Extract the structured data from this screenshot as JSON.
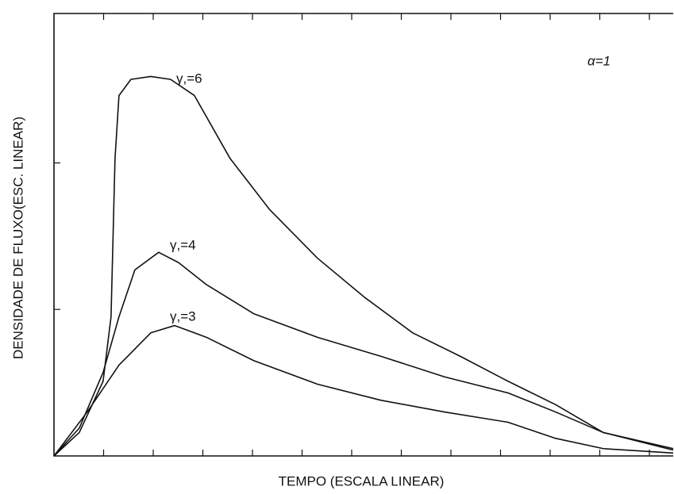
{
  "chart_data": {
    "type": "line",
    "xlabel": "TEMPO (ESCALA LINEAR)",
    "ylabel": "DENSIDADE DE FLUXO(ESC. LINEAR)",
    "annotations": [
      "α=1"
    ],
    "xlim": [
      0,
      12.48
    ],
    "ylim": [
      0,
      3.02
    ],
    "xticks": [
      1,
      2,
      3,
      4,
      5,
      6,
      7,
      8,
      9,
      10,
      11,
      12
    ],
    "yticks": [
      1,
      2
    ],
    "grid": false,
    "series": [
      {
        "name": "γ,=6",
        "color": "#111111",
        "x": [
          0,
          0.51,
          0.99,
          1.15,
          1.23,
          1.31,
          1.55,
          1.95,
          2.35,
          2.83,
          3.55,
          4.35,
          5.31,
          6.27,
          7.23,
          8.19,
          9.15,
          10.11,
          11.07,
          12.48
        ],
        "values": [
          0,
          0.16,
          0.51,
          0.95,
          2.03,
          2.46,
          2.57,
          2.59,
          2.57,
          2.46,
          2.03,
          1.68,
          1.35,
          1.08,
          0.84,
          0.68,
          0.51,
          0.35,
          0.16,
          0.05
        ]
      },
      {
        "name": "γ,=4",
        "color": "#111111",
        "x": [
          0,
          0.51,
          0.99,
          1.31,
          1.63,
          2.11,
          2.51,
          3.07,
          4.03,
          5.31,
          6.59,
          7.87,
          9.15,
          10.11,
          11.07,
          12.48
        ],
        "values": [
          0,
          0.19,
          0.57,
          0.95,
          1.27,
          1.39,
          1.32,
          1.17,
          0.97,
          0.81,
          0.68,
          0.54,
          0.43,
          0.3,
          0.16,
          0.04
        ]
      },
      {
        "name": "γ,=3",
        "color": "#111111",
        "x": [
          0,
          0.67,
          1.31,
          1.95,
          2.43,
          3.07,
          4.03,
          5.31,
          6.59,
          7.87,
          9.15,
          10.11,
          11.07,
          12.48
        ],
        "values": [
          0,
          0.3,
          0.62,
          0.84,
          0.89,
          0.81,
          0.65,
          0.49,
          0.38,
          0.3,
          0.23,
          0.12,
          0.05,
          0.02
        ]
      }
    ]
  }
}
